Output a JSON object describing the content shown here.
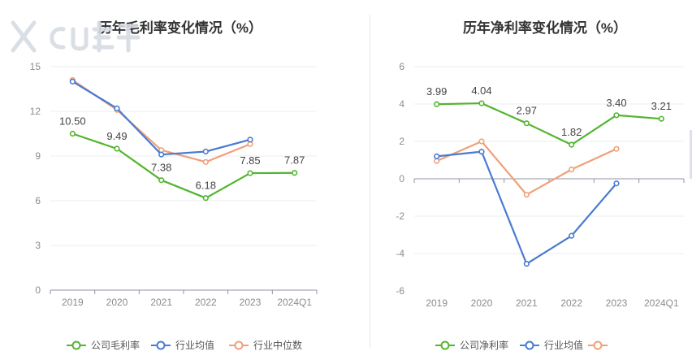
{
  "chart_data": [
    {
      "type": "line",
      "title": "历年毛利率变化情况（%）",
      "categories": [
        "2019",
        "2020",
        "2021",
        "2022",
        "2023",
        "2024Q1"
      ],
      "ylim": [
        0,
        15
      ],
      "yticks": [
        0,
        3,
        6,
        9,
        12,
        15
      ],
      "grid": true,
      "legend_placement": "bottom",
      "series": [
        {
          "name": "公司毛利率",
          "color": "#52b52f",
          "values": [
            10.5,
            9.49,
            7.38,
            6.18,
            7.85,
            7.87
          ],
          "labels": [
            "10.50",
            "9.49",
            "7.38",
            "6.18",
            "7.85",
            "7.87"
          ]
        },
        {
          "name": "行业均值",
          "color": "#4a7bd0",
          "values": [
            14.0,
            12.2,
            9.1,
            9.3,
            10.1,
            null
          ]
        },
        {
          "name": "行业中位数",
          "color": "#f0a07a",
          "values": [
            14.1,
            12.1,
            9.4,
            8.6,
            9.8,
            null
          ]
        }
      ]
    },
    {
      "type": "line",
      "title": "历年净利率变化情况（%）",
      "categories": [
        "2019",
        "2020",
        "2021",
        "2022",
        "2023",
        "2024Q1"
      ],
      "ylim": [
        -6,
        6
      ],
      "yticks": [
        -6,
        -4,
        -2,
        0,
        2,
        4,
        6
      ],
      "grid": true,
      "legend_placement": "bottom",
      "series": [
        {
          "name": "公司净利率",
          "color": "#52b52f",
          "values": [
            3.99,
            4.04,
            2.97,
            1.82,
            3.4,
            3.21
          ],
          "labels": [
            "3.99",
            "4.04",
            "2.97",
            "1.82",
            "3.40",
            "3.21"
          ]
        },
        {
          "name": "行业均值",
          "color": "#4a7bd0",
          "values": [
            1.2,
            1.45,
            -4.55,
            -3.05,
            -0.25,
            null
          ]
        },
        {
          "name": "",
          "color": "#f0a07a",
          "values": [
            0.95,
            2.0,
            -0.85,
            0.5,
            1.6,
            null
          ]
        }
      ]
    }
  ]
}
